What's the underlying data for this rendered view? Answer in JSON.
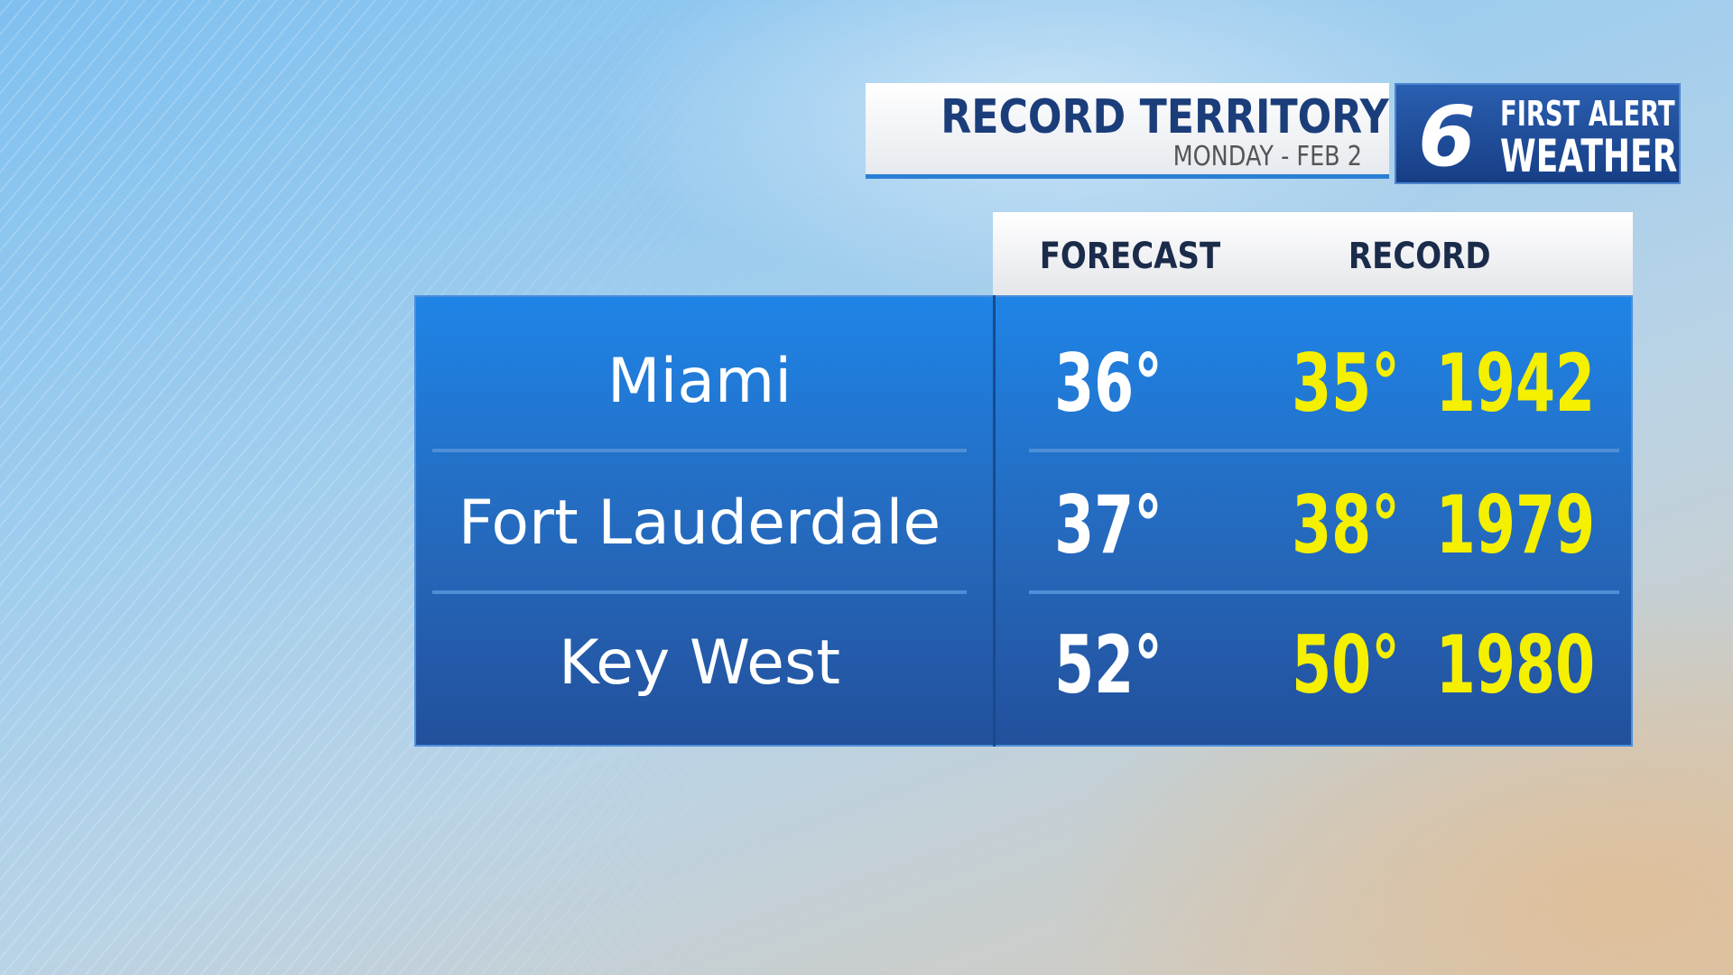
{
  "header": {
    "title": "RECORD TERRITORY",
    "subtitle": "MONDAY - FEB 2"
  },
  "logo": {
    "number": "6",
    "line1": "FIRST ALERT",
    "line2": "WEATHER"
  },
  "table": {
    "columns": [
      "FORECAST",
      "RECORD"
    ],
    "rows": [
      [
        "Miami",
        "36°",
        "35°",
        "1942"
      ],
      [
        "Fort Lauderdale",
        "37°",
        "38°",
        "1979"
      ],
      [
        "Key West",
        "52°",
        "50°",
        "1980"
      ]
    ]
  }
}
